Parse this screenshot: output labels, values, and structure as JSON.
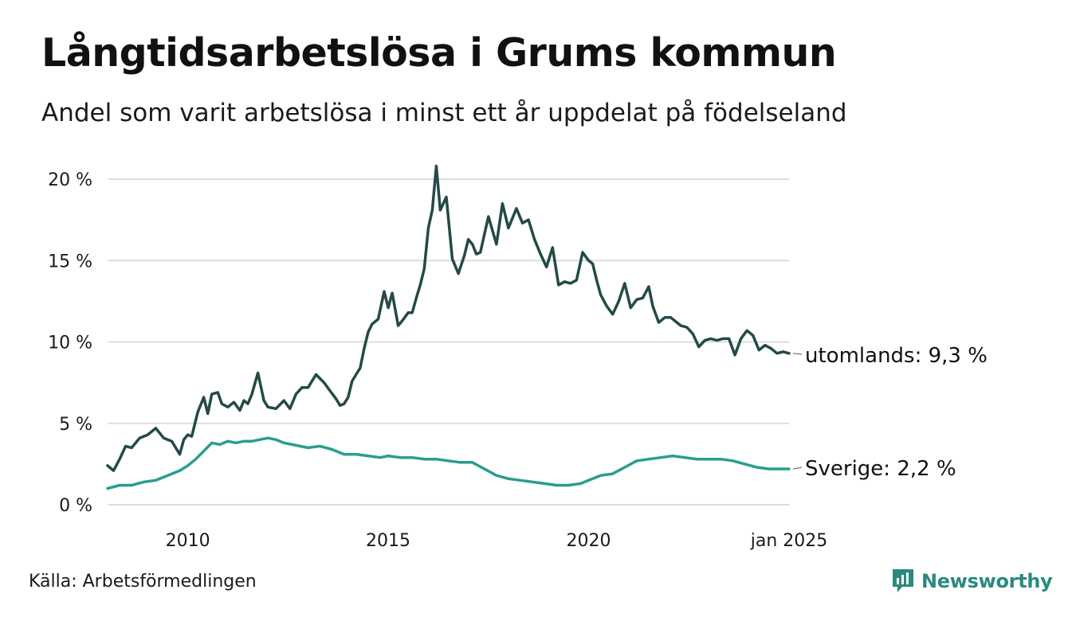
{
  "title": "Långtidsarbetslösa i Grums kommun",
  "subtitle": "Andel som varit arbetslösa i minst ett år uppdelat på födelseland",
  "source": "Källa: Arbetsförmedlingen",
  "brand": "Newsworthy",
  "colors": {
    "utomlands": "#244a47",
    "sverige": "#2a9d8f",
    "grid": "#dddddd",
    "brand": "#2a8a7e"
  },
  "chart_data": {
    "type": "line",
    "title": "Långtidsarbetslösa i Grums kommun",
    "xlabel": "",
    "ylabel": "",
    "xlim": [
      2008.0,
      2025.0
    ],
    "ylim": [
      0,
      20
    ],
    "yticks": [
      0,
      5,
      10,
      15,
      20
    ],
    "ytick_labels": [
      "0 %",
      "5 %",
      "10 %",
      "15 %",
      "20 %"
    ],
    "xticks": [
      2010,
      2015,
      2020,
      2025
    ],
    "xtick_labels": [
      "2010",
      "2015",
      "2020",
      "jan 2025"
    ],
    "grid": true,
    "series": [
      {
        "name": "utomlands",
        "end_label": "utomlands: 9,3 %",
        "x": [
          2008.0,
          2008.15,
          2008.3,
          2008.45,
          2008.6,
          2008.8,
          2009.0,
          2009.2,
          2009.4,
          2009.5,
          2009.6,
          2009.8,
          2009.9,
          2010.0,
          2010.1,
          2010.25,
          2010.4,
          2010.5,
          2010.6,
          2010.75,
          2010.85,
          2011.0,
          2011.15,
          2011.3,
          2011.4,
          2011.5,
          2011.6,
          2011.75,
          2011.9,
          2012.0,
          2012.2,
          2012.4,
          2012.55,
          2012.7,
          2012.85,
          2013.0,
          2013.2,
          2013.4,
          2013.55,
          2013.7,
          2013.8,
          2013.9,
          2014.0,
          2014.1,
          2014.2,
          2014.3,
          2014.4,
          2014.5,
          2014.6,
          2014.75,
          2014.9,
          2015.0,
          2015.1,
          2015.25,
          2015.35,
          2015.5,
          2015.6,
          2015.7,
          2015.8,
          2015.9,
          2016.0,
          2016.1,
          2016.2,
          2016.3,
          2016.45,
          2016.6,
          2016.75,
          2016.9,
          2017.0,
          2017.1,
          2017.2,
          2017.3,
          2017.5,
          2017.7,
          2017.85,
          2018.0,
          2018.2,
          2018.35,
          2018.5,
          2018.65,
          2018.8,
          2018.95,
          2019.1,
          2019.25,
          2019.4,
          2019.55,
          2019.7,
          2019.85,
          2020.0,
          2020.1,
          2020.2,
          2020.3,
          2020.45,
          2020.6,
          2020.75,
          2020.9,
          2021.05,
          2021.2,
          2021.35,
          2021.5,
          2021.6,
          2021.75,
          2021.9,
          2022.05,
          2022.2,
          2022.3,
          2022.45,
          2022.6,
          2022.75,
          2022.9,
          2023.05,
          2023.2,
          2023.35,
          2023.5,
          2023.65,
          2023.8,
          2023.95,
          2024.1,
          2024.25,
          2024.4,
          2024.55,
          2024.7,
          2024.85,
          2025.0
        ],
        "values": [
          2.4,
          2.1,
          2.8,
          3.6,
          3.5,
          4.1,
          4.3,
          4.7,
          4.1,
          4.0,
          3.9,
          3.1,
          4.0,
          4.3,
          4.2,
          5.7,
          6.6,
          5.6,
          6.8,
          6.9,
          6.2,
          6.0,
          6.3,
          5.8,
          6.4,
          6.2,
          6.8,
          8.1,
          6.4,
          6.0,
          5.9,
          6.4,
          5.9,
          6.8,
          7.2,
          7.2,
          8.0,
          7.5,
          7.0,
          6.5,
          6.1,
          6.2,
          6.6,
          7.6,
          8.0,
          8.4,
          9.6,
          10.6,
          11.1,
          11.4,
          13.1,
          12.1,
          13.0,
          11.0,
          11.3,
          11.8,
          11.8,
          12.7,
          13.5,
          14.5,
          17.0,
          18.1,
          20.8,
          18.1,
          18.9,
          15.1,
          14.2,
          15.3,
          16.3,
          16.0,
          15.4,
          15.5,
          17.7,
          16.0,
          18.5,
          17.0,
          18.2,
          17.3,
          17.5,
          16.3,
          15.4,
          14.6,
          15.8,
          13.5,
          13.7,
          13.6,
          13.8,
          15.5,
          15.0,
          14.8,
          13.8,
          12.9,
          12.2,
          11.7,
          12.5,
          13.6,
          12.1,
          12.6,
          12.7,
          13.4,
          12.2,
          11.2,
          11.5,
          11.5,
          11.2,
          11.0,
          10.9,
          10.5,
          9.7,
          10.1,
          10.2,
          10.1,
          10.2,
          10.2,
          9.2,
          10.2,
          10.7,
          10.4,
          9.5,
          9.8,
          9.6,
          9.3,
          9.4,
          9.3
        ],
        "color": "#244a47"
      },
      {
        "name": "Sverige",
        "end_label": "Sverige: 2,2 %",
        "x": [
          2008.0,
          2008.3,
          2008.6,
          2008.9,
          2009.2,
          2009.5,
          2009.8,
          2010.0,
          2010.2,
          2010.4,
          2010.6,
          2010.8,
          2011.0,
          2011.2,
          2011.4,
          2011.6,
          2011.8,
          2012.0,
          2012.2,
          2012.4,
          2012.6,
          2012.8,
          2013.0,
          2013.3,
          2013.6,
          2013.9,
          2014.2,
          2014.5,
          2014.8,
          2015.0,
          2015.3,
          2015.6,
          2015.9,
          2016.2,
          2016.5,
          2016.8,
          2017.1,
          2017.4,
          2017.7,
          2018.0,
          2018.3,
          2018.6,
          2018.9,
          2019.2,
          2019.5,
          2019.8,
          2020.0,
          2020.3,
          2020.6,
          2020.9,
          2021.2,
          2021.5,
          2021.8,
          2022.1,
          2022.4,
          2022.7,
          2023.0,
          2023.3,
          2023.6,
          2023.9,
          2024.2,
          2024.5,
          2024.8,
          2025.0
        ],
        "values": [
          1.0,
          1.2,
          1.2,
          1.4,
          1.5,
          1.8,
          2.1,
          2.4,
          2.8,
          3.3,
          3.8,
          3.7,
          3.9,
          3.8,
          3.9,
          3.9,
          4.0,
          4.1,
          4.0,
          3.8,
          3.7,
          3.6,
          3.5,
          3.6,
          3.4,
          3.1,
          3.1,
          3.0,
          2.9,
          3.0,
          2.9,
          2.9,
          2.8,
          2.8,
          2.7,
          2.6,
          2.6,
          2.2,
          1.8,
          1.6,
          1.5,
          1.4,
          1.3,
          1.2,
          1.2,
          1.3,
          1.5,
          1.8,
          1.9,
          2.3,
          2.7,
          2.8,
          2.9,
          3.0,
          2.9,
          2.8,
          2.8,
          2.8,
          2.7,
          2.5,
          2.3,
          2.2,
          2.2,
          2.2
        ],
        "color": "#2a9d8f"
      }
    ]
  }
}
